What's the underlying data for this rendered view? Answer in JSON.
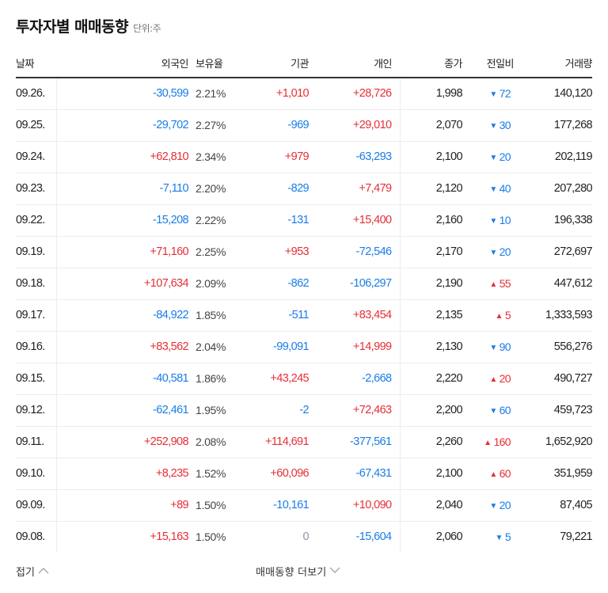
{
  "header": {
    "title": "투자자별 매매동향",
    "unit": "단위:주"
  },
  "table": {
    "columns": {
      "date": "날짜",
      "foreign": "외국인",
      "ratio": "보유율",
      "institution": "기관",
      "individual": "개인",
      "close": "종가",
      "change": "전일비",
      "volume": "거래량"
    },
    "rows": [
      {
        "date": "09.26.",
        "foreign": "-30,599",
        "ratio": "2.21%",
        "institution": "+1,010",
        "individual": "+28,726",
        "close": "1,998",
        "change_dir": "down",
        "change": "72",
        "volume": "140,120"
      },
      {
        "date": "09.25.",
        "foreign": "-29,702",
        "ratio": "2.27%",
        "institution": "-969",
        "individual": "+29,010",
        "close": "2,070",
        "change_dir": "down",
        "change": "30",
        "volume": "177,268"
      },
      {
        "date": "09.24.",
        "foreign": "+62,810",
        "ratio": "2.34%",
        "institution": "+979",
        "individual": "-63,293",
        "close": "2,100",
        "change_dir": "down",
        "change": "20",
        "volume": "202,119"
      },
      {
        "date": "09.23.",
        "foreign": "-7,110",
        "ratio": "2.20%",
        "institution": "-829",
        "individual": "+7,479",
        "close": "2,120",
        "change_dir": "down",
        "change": "40",
        "volume": "207,280"
      },
      {
        "date": "09.22.",
        "foreign": "-15,208",
        "ratio": "2.22%",
        "institution": "-131",
        "individual": "+15,400",
        "close": "2,160",
        "change_dir": "down",
        "change": "10",
        "volume": "196,338"
      },
      {
        "date": "09.19.",
        "foreign": "+71,160",
        "ratio": "2.25%",
        "institution": "+953",
        "individual": "-72,546",
        "close": "2,170",
        "change_dir": "down",
        "change": "20",
        "volume": "272,697"
      },
      {
        "date": "09.18.",
        "foreign": "+107,634",
        "ratio": "2.09%",
        "institution": "-862",
        "individual": "-106,297",
        "close": "2,190",
        "change_dir": "up",
        "change": "55",
        "volume": "447,612"
      },
      {
        "date": "09.17.",
        "foreign": "-84,922",
        "ratio": "1.85%",
        "institution": "-511",
        "individual": "+83,454",
        "close": "2,135",
        "change_dir": "up",
        "change": "5",
        "volume": "1,333,593"
      },
      {
        "date": "09.16.",
        "foreign": "+83,562",
        "ratio": "2.04%",
        "institution": "-99,091",
        "individual": "+14,999",
        "close": "2,130",
        "change_dir": "down",
        "change": "90",
        "volume": "556,276"
      },
      {
        "date": "09.15.",
        "foreign": "-40,581",
        "ratio": "1.86%",
        "institution": "+43,245",
        "individual": "-2,668",
        "close": "2,220",
        "change_dir": "up",
        "change": "20",
        "volume": "490,727"
      },
      {
        "date": "09.12.",
        "foreign": "-62,461",
        "ratio": "1.95%",
        "institution": "-2",
        "individual": "+72,463",
        "close": "2,200",
        "change_dir": "down",
        "change": "60",
        "volume": "459,723"
      },
      {
        "date": "09.11.",
        "foreign": "+252,908",
        "ratio": "2.08%",
        "institution": "+114,691",
        "individual": "-377,561",
        "close": "2,260",
        "change_dir": "up",
        "change": "160",
        "volume": "1,652,920"
      },
      {
        "date": "09.10.",
        "foreign": "+8,235",
        "ratio": "1.52%",
        "institution": "+60,096",
        "individual": "-67,431",
        "close": "2,100",
        "change_dir": "up",
        "change": "60",
        "volume": "351,959"
      },
      {
        "date": "09.09.",
        "foreign": "+89",
        "ratio": "1.50%",
        "institution": "-10,161",
        "individual": "+10,090",
        "close": "2,040",
        "change_dir": "down",
        "change": "20",
        "volume": "87,405"
      },
      {
        "date": "09.08.",
        "foreign": "+15,163",
        "ratio": "1.50%",
        "institution": "0",
        "individual": "-15,604",
        "close": "2,060",
        "change_dir": "down",
        "change": "5",
        "volume": "79,221"
      }
    ]
  },
  "footer": {
    "fold_label": "접기",
    "more_label": "매매동향 더보기"
  },
  "colors": {
    "up": "#e52f37",
    "down": "#1a7de8",
    "zero": "#8a97a6",
    "header_border": "#333333",
    "row_border": "#ececec"
  },
  "icons": {
    "up": "▲",
    "down": "▼",
    "fold": "chevron-up-icon",
    "more": "chevron-down-icon"
  }
}
